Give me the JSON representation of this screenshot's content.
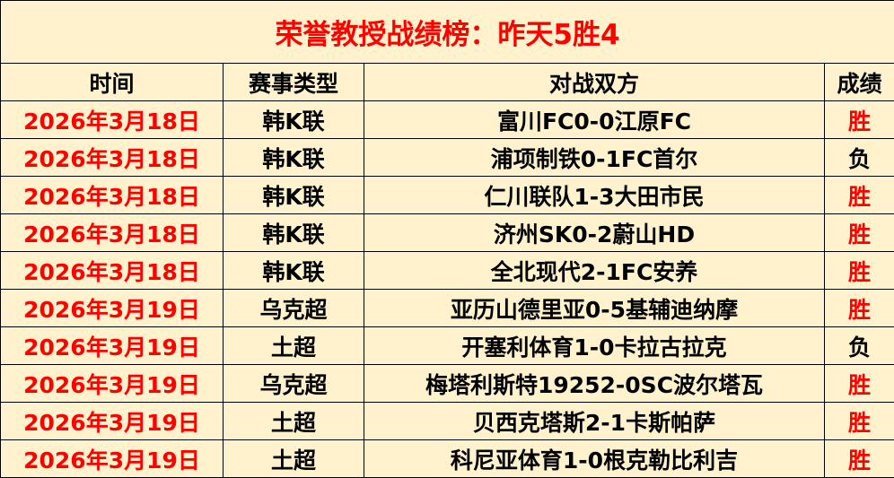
{
  "title": "荣誉教授战绩榜：昨天5胜4",
  "colors": {
    "background": "#FFF2CC",
    "accent": "#FF0000"
  },
  "headers": [
    "时间",
    "赛事类型",
    "对战双方",
    "成绩"
  ],
  "rows": [
    {
      "date": "2026年3月18日",
      "league": "韩K联",
      "match": "富川FC0-0江原FC",
      "result": "胜"
    },
    {
      "date": "2026年3月18日",
      "league": "韩K联",
      "match": "浦项制铁0-1FC首尔",
      "result": "负"
    },
    {
      "date": "2026年3月18日",
      "league": "韩K联",
      "match": "仁川联队1-3大田市民",
      "result": "胜"
    },
    {
      "date": "2026年3月18日",
      "league": "韩K联",
      "match": "济州SK0-2蔚山HD",
      "result": "胜"
    },
    {
      "date": "2026年3月18日",
      "league": "韩K联",
      "match": "全北现代2-1FC安养",
      "result": "胜"
    },
    {
      "date": "2026年3月19日",
      "league": "乌克超",
      "match": "亚历山德里亚0-5基辅迪纳摩",
      "result": "胜"
    },
    {
      "date": "2026年3月19日",
      "league": "土超",
      "match": "开塞利体育1-0卡拉古拉克",
      "result": "负"
    },
    {
      "date": "2026年3月19日",
      "league": "乌克超",
      "match": "梅塔利斯特19252-0SC波尔塔瓦",
      "result": "胜"
    },
    {
      "date": "2026年3月19日",
      "league": "土超",
      "match": "贝西克塔斯2-1卡斯帕萨",
      "result": "胜"
    },
    {
      "date": "2026年3月19日",
      "league": "土超",
      "match": "科尼亚体育1-0根克勒比利吉",
      "result": "胜"
    }
  ]
}
